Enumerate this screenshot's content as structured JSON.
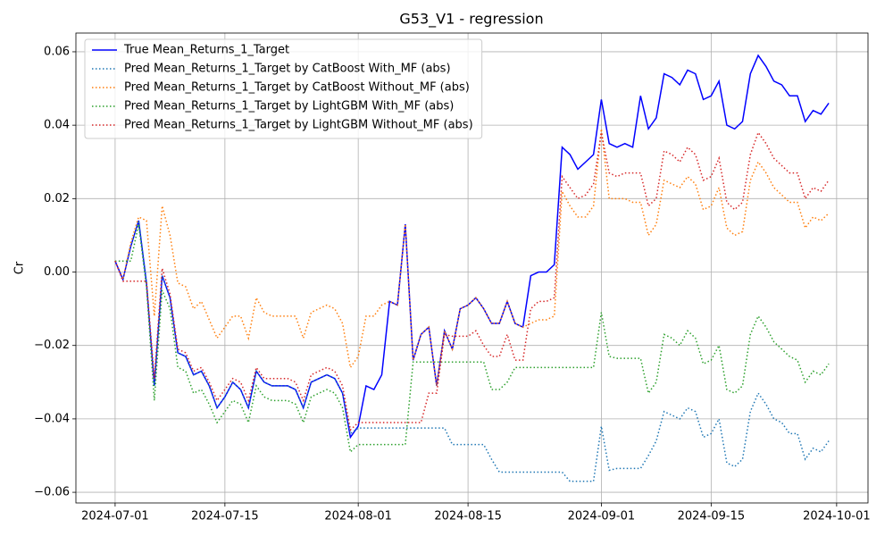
{
  "chart_data": {
    "type": "line",
    "title": "G53_V1 - regression",
    "ylabel": "Cr",
    "x": [
      "2024-07-01",
      "2024-07-02",
      "2024-07-03",
      "2024-07-04",
      "2024-07-05",
      "2024-07-06",
      "2024-07-07",
      "2024-07-08",
      "2024-07-09",
      "2024-07-10",
      "2024-07-11",
      "2024-07-12",
      "2024-07-13",
      "2024-07-14",
      "2024-07-15",
      "2024-07-16",
      "2024-07-17",
      "2024-07-18",
      "2024-07-19",
      "2024-07-20",
      "2024-07-21",
      "2024-07-22",
      "2024-07-23",
      "2024-07-24",
      "2024-07-25",
      "2024-07-26",
      "2024-07-27",
      "2024-07-28",
      "2024-07-29",
      "2024-07-30",
      "2024-07-31",
      "2024-08-01",
      "2024-08-02",
      "2024-08-03",
      "2024-08-04",
      "2024-08-05",
      "2024-08-06",
      "2024-08-07",
      "2024-08-08",
      "2024-08-09",
      "2024-08-10",
      "2024-08-11",
      "2024-08-12",
      "2024-08-13",
      "2024-08-14",
      "2024-08-15",
      "2024-08-16",
      "2024-08-17",
      "2024-08-18",
      "2024-08-19",
      "2024-08-20",
      "2024-08-21",
      "2024-08-22",
      "2024-08-23",
      "2024-08-24",
      "2024-08-25",
      "2024-08-26",
      "2024-08-27",
      "2024-08-28",
      "2024-08-29",
      "2024-08-30",
      "2024-08-31",
      "2024-09-01",
      "2024-09-02",
      "2024-09-03",
      "2024-09-04",
      "2024-09-05",
      "2024-09-06",
      "2024-09-07",
      "2024-09-08",
      "2024-09-09",
      "2024-09-10",
      "2024-09-11",
      "2024-09-12",
      "2024-09-13",
      "2024-09-14",
      "2024-09-15",
      "2024-09-16",
      "2024-09-17",
      "2024-09-18",
      "2024-09-19",
      "2024-09-20",
      "2024-09-21",
      "2024-09-22",
      "2024-09-23",
      "2024-09-24",
      "2024-09-25",
      "2024-09-26",
      "2024-09-27",
      "2024-09-28",
      "2024-09-29",
      "2024-09-30"
    ],
    "series": [
      {
        "name": "True Mean_Returns_1_Target",
        "color": "#0000ff",
        "style": "solid",
        "values": [
          0.003,
          -0.002,
          0.007,
          0.014,
          -0.003,
          -0.031,
          -0.001,
          -0.007,
          -0.022,
          -0.023,
          -0.028,
          -0.027,
          -0.031,
          -0.037,
          -0.034,
          -0.03,
          -0.032,
          -0.037,
          -0.027,
          -0.03,
          -0.031,
          -0.031,
          -0.031,
          -0.032,
          -0.037,
          -0.03,
          -0.029,
          -0.028,
          -0.029,
          -0.033,
          -0.045,
          -0.042,
          -0.031,
          -0.032,
          -0.028,
          -0.008,
          -0.009,
          0.013,
          -0.024,
          -0.017,
          -0.015,
          -0.031,
          -0.016,
          -0.021,
          -0.01,
          -0.009,
          -0.007,
          -0.01,
          -0.014,
          -0.014,
          -0.008,
          -0.014,
          -0.015,
          -0.001,
          0.0,
          0.0,
          0.002,
          0.034,
          0.032,
          0.028,
          0.03,
          0.032,
          0.047,
          0.035,
          0.034,
          0.035,
          0.034,
          0.048,
          0.039,
          0.042,
          0.054,
          0.053,
          0.051,
          0.055,
          0.054,
          0.047,
          0.048,
          0.052,
          0.04,
          0.039,
          0.041,
          0.054,
          0.059,
          0.056,
          0.052,
          0.051,
          0.048,
          0.048,
          0.041,
          0.044,
          0.043,
          0.046
        ]
      },
      {
        "name": "Pred Mean_Returns_1_Target by CatBoost With_MF (abs)",
        "color": "#1f77b4",
        "style": "dotted",
        "values": [
          0.003,
          -0.002,
          0.007,
          0.014,
          -0.003,
          -0.031,
          -0.001,
          -0.007,
          -0.022,
          -0.023,
          -0.028,
          -0.027,
          -0.031,
          -0.037,
          -0.034,
          -0.03,
          -0.032,
          -0.037,
          -0.027,
          -0.03,
          -0.031,
          -0.031,
          -0.031,
          -0.032,
          -0.037,
          -0.03,
          -0.029,
          -0.028,
          -0.029,
          -0.033,
          -0.044,
          -0.0425,
          -0.0425,
          -0.0425,
          -0.0425,
          -0.0425,
          -0.0425,
          -0.0425,
          -0.0425,
          -0.0425,
          -0.0425,
          -0.0425,
          -0.0425,
          -0.047,
          -0.047,
          -0.047,
          -0.047,
          -0.047,
          -0.051,
          -0.0545,
          -0.0545,
          -0.0545,
          -0.0545,
          -0.0545,
          -0.0545,
          -0.0545,
          -0.0545,
          -0.0545,
          -0.057,
          -0.057,
          -0.057,
          -0.057,
          -0.042,
          -0.054,
          -0.0535,
          -0.0535,
          -0.0535,
          -0.0535,
          -0.05,
          -0.046,
          -0.038,
          -0.039,
          -0.04,
          -0.037,
          -0.038,
          -0.045,
          -0.044,
          -0.04,
          -0.052,
          -0.053,
          -0.051,
          -0.038,
          -0.033,
          -0.036,
          -0.04,
          -0.041,
          -0.044,
          -0.044,
          -0.051,
          -0.048,
          -0.049,
          -0.046
        ]
      },
      {
        "name": "Pred Mean_Returns_1_Target by CatBoost Without_MF (abs)",
        "color": "#ff7f0e",
        "style": "dotted",
        "values": [
          0.003,
          -0.002,
          0.008,
          0.015,
          0.014,
          -0.012,
          0.018,
          0.01,
          -0.003,
          -0.004,
          -0.01,
          -0.008,
          -0.013,
          -0.018,
          -0.015,
          -0.012,
          -0.012,
          -0.018,
          -0.007,
          -0.011,
          -0.012,
          -0.012,
          -0.012,
          -0.012,
          -0.018,
          -0.011,
          -0.01,
          -0.009,
          -0.01,
          -0.014,
          -0.026,
          -0.023,
          -0.012,
          -0.012,
          -0.009,
          -0.008,
          -0.009,
          0.013,
          -0.024,
          -0.017,
          -0.015,
          -0.031,
          -0.016,
          -0.021,
          -0.01,
          -0.009,
          -0.007,
          -0.01,
          -0.014,
          -0.014,
          -0.008,
          -0.014,
          -0.015,
          -0.014,
          -0.013,
          -0.013,
          -0.012,
          0.022,
          0.018,
          0.015,
          0.015,
          0.018,
          0.039,
          0.02,
          0.02,
          0.02,
          0.019,
          0.019,
          0.01,
          0.013,
          0.025,
          0.024,
          0.023,
          0.026,
          0.024,
          0.017,
          0.018,
          0.023,
          0.012,
          0.01,
          0.011,
          0.025,
          0.03,
          0.027,
          0.023,
          0.021,
          0.019,
          0.019,
          0.012,
          0.015,
          0.014,
          0.016
        ]
      },
      {
        "name": "Pred Mean_Returns_1_Target by LightGBM With_MF (abs)",
        "color": "#2ca02c",
        "style": "dotted",
        "values": [
          0.003,
          0.003,
          0.003,
          0.013,
          -0.004,
          -0.035,
          -0.005,
          -0.01,
          -0.026,
          -0.027,
          -0.033,
          -0.032,
          -0.036,
          -0.041,
          -0.038,
          -0.035,
          -0.036,
          -0.041,
          -0.031,
          -0.034,
          -0.035,
          -0.035,
          -0.035,
          -0.036,
          -0.041,
          -0.034,
          -0.033,
          -0.032,
          -0.033,
          -0.037,
          -0.049,
          -0.047,
          -0.047,
          -0.047,
          -0.047,
          -0.047,
          -0.047,
          -0.047,
          -0.0245,
          -0.0245,
          -0.0245,
          -0.0245,
          -0.0245,
          -0.0245,
          -0.0245,
          -0.0245,
          -0.0245,
          -0.0245,
          -0.032,
          -0.032,
          -0.03,
          -0.026,
          -0.026,
          -0.026,
          -0.026,
          -0.026,
          -0.026,
          -0.026,
          -0.026,
          -0.026,
          -0.026,
          -0.026,
          -0.011,
          -0.023,
          -0.0235,
          -0.0235,
          -0.0235,
          -0.0235,
          -0.033,
          -0.03,
          -0.017,
          -0.018,
          -0.02,
          -0.016,
          -0.018,
          -0.025,
          -0.024,
          -0.02,
          -0.032,
          -0.033,
          -0.031,
          -0.017,
          -0.012,
          -0.015,
          -0.019,
          -0.021,
          -0.023,
          -0.024,
          -0.03,
          -0.027,
          -0.028,
          -0.025
        ]
      },
      {
        "name": "Pred Mean_Returns_1_Target by LightGBM Without_MF (abs)",
        "color": "#d62728",
        "style": "dotted",
        "values": [
          0.003,
          -0.0025,
          -0.0025,
          -0.0025,
          -0.0025,
          -0.029,
          0.001,
          -0.006,
          -0.021,
          -0.022,
          -0.027,
          -0.026,
          -0.03,
          -0.035,
          -0.032,
          -0.029,
          -0.03,
          -0.035,
          -0.026,
          -0.029,
          -0.029,
          -0.029,
          -0.029,
          -0.03,
          -0.035,
          -0.028,
          -0.027,
          -0.026,
          -0.027,
          -0.031,
          -0.043,
          -0.041,
          -0.041,
          -0.041,
          -0.041,
          -0.041,
          -0.041,
          -0.041,
          -0.041,
          -0.041,
          -0.033,
          -0.033,
          -0.017,
          -0.0175,
          -0.0175,
          -0.0175,
          -0.016,
          -0.02,
          -0.023,
          -0.023,
          -0.017,
          -0.024,
          -0.024,
          -0.01,
          -0.008,
          -0.008,
          -0.007,
          0.026,
          0.023,
          0.02,
          0.021,
          0.024,
          0.038,
          0.027,
          0.026,
          0.027,
          0.027,
          0.027,
          0.018,
          0.02,
          0.033,
          0.032,
          0.03,
          0.034,
          0.032,
          0.025,
          0.026,
          0.031,
          0.019,
          0.017,
          0.019,
          0.032,
          0.038,
          0.035,
          0.031,
          0.029,
          0.027,
          0.027,
          0.02,
          0.023,
          0.022,
          0.025
        ]
      }
    ],
    "xlim": [
      "2024-06-26",
      "2024-10-05"
    ],
    "xticks": [
      "2024-07-01",
      "2024-07-15",
      "2024-08-01",
      "2024-08-15",
      "2024-09-01",
      "2024-09-15",
      "2024-10-01"
    ],
    "ylim": [
      -0.0629,
      0.0651
    ],
    "yticks": [
      {
        "value": -0.06,
        "label": "−0.06"
      },
      {
        "value": -0.04,
        "label": "−0.04"
      },
      {
        "value": -0.02,
        "label": "−0.02"
      },
      {
        "value": 0,
        "label": "0.00"
      },
      0.02,
      0.04,
      0.06
    ],
    "grid": true,
    "legend": "upper left"
  }
}
